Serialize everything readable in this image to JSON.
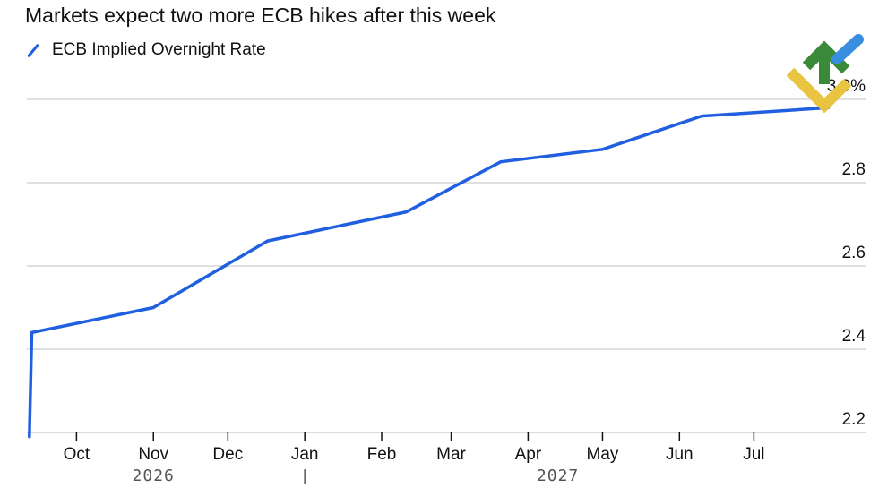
{
  "chart_data": {
    "type": "line",
    "title": "Markets expect two more ECB hikes after this week",
    "legend": {
      "placement": "top-left"
    },
    "series": [
      {
        "name": "ECB Implied Overnight Rate",
        "color": "#1f5fe0",
        "points": [
          {
            "x": "2026-09-12",
            "y": 2.19
          },
          {
            "x": "2026-09-13",
            "y": 2.44
          },
          {
            "x": "2026-11-01",
            "y": 2.5
          },
          {
            "x": "2026-12-17",
            "y": 2.66
          },
          {
            "x": "2027-02-11",
            "y": 2.73
          },
          {
            "x": "2027-03-21",
            "y": 2.85
          },
          {
            "x": "2027-05-01",
            "y": 2.88
          },
          {
            "x": "2027-06-10",
            "y": 2.96
          },
          {
            "x": "2027-07-31",
            "y": 2.98
          }
        ]
      }
    ],
    "x_axis": {
      "range": [
        "2026-09-11",
        "2027-08-15"
      ],
      "ticks": [
        {
          "label": "Oct",
          "date": "2026-10-01"
        },
        {
          "label": "Nov",
          "date": "2026-11-01"
        },
        {
          "label": "Dec",
          "date": "2026-12-01"
        },
        {
          "label": "Jan",
          "date": "2027-01-01"
        },
        {
          "label": "Feb",
          "date": "2027-02-01"
        },
        {
          "label": "Mar",
          "date": "2027-03-01"
        },
        {
          "label": "Apr",
          "date": "2027-04-01"
        },
        {
          "label": "May",
          "date": "2027-05-01"
        },
        {
          "label": "Jun",
          "date": "2027-06-01"
        },
        {
          "label": "Jul",
          "date": "2027-07-01"
        }
      ],
      "year_labels": [
        {
          "label": "2026",
          "date": "2026-11-01"
        },
        {
          "label": "2027",
          "date": "2027-04-13"
        }
      ],
      "year_separator_date": "2027-01-01"
    },
    "y_axis": {
      "range": [
        2.2,
        3.0
      ],
      "ticks": [
        {
          "value": 2.2,
          "label": "2.2"
        },
        {
          "value": 2.4,
          "label": "2.4"
        },
        {
          "value": 2.6,
          "label": "2.6"
        },
        {
          "value": 2.8,
          "label": "2.8"
        },
        {
          "value": 3.0,
          "label": "3.0%"
        }
      ],
      "position": "right",
      "grid": true
    }
  },
  "logo": {
    "colors": [
      "#3a8a3a",
      "#e8c440",
      "#3a8ee0"
    ],
    "icon": "brand-logo-icon"
  }
}
